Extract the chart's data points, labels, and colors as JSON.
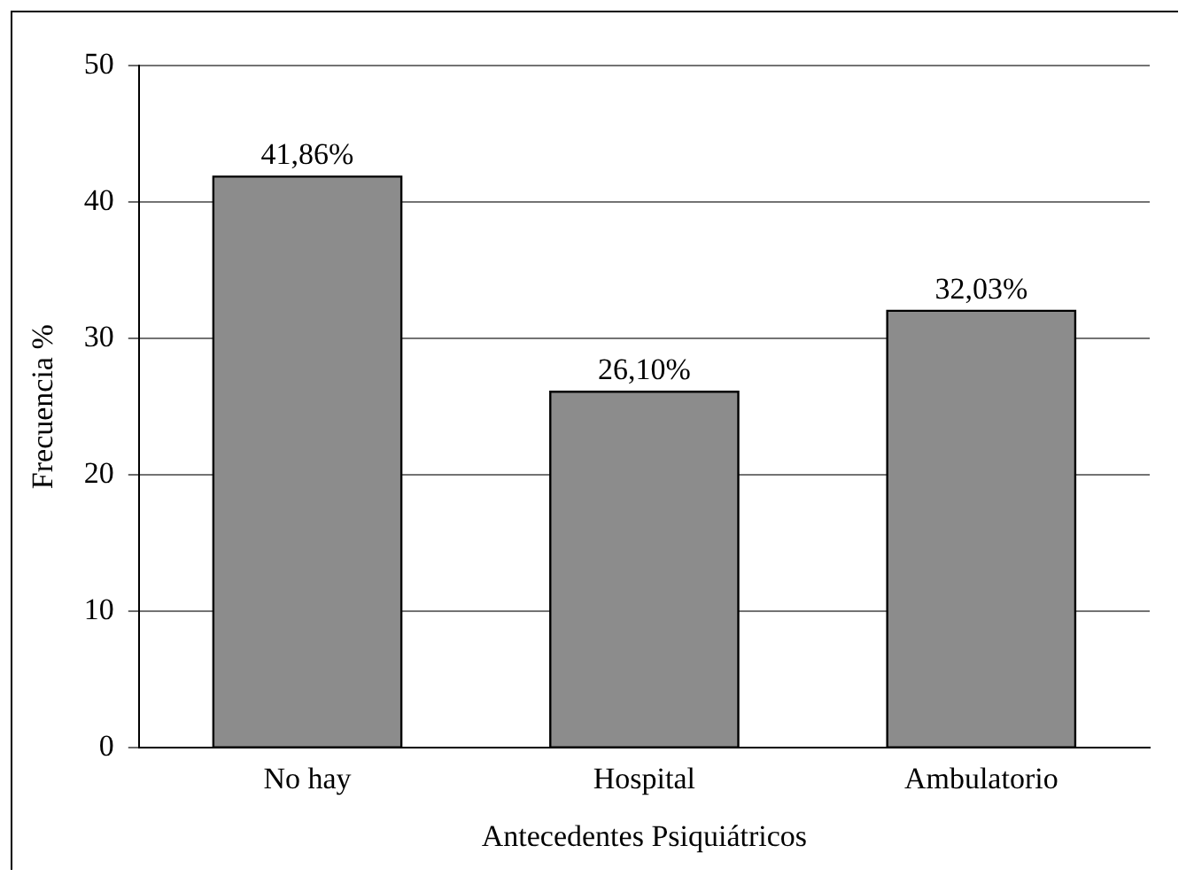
{
  "chart_data": {
    "type": "bar",
    "xlabel": "Antecedentes Psiquiátricos",
    "ylabel": "Frecuencia %",
    "categories": [
      "No hay",
      "Hospital",
      "Ambulatorio"
    ],
    "values": [
      41.86,
      26.1,
      32.03
    ],
    "value_labels": [
      "41,86%",
      "26,10%",
      "32,03%"
    ],
    "color": "#8c8c8c",
    "ylim": [
      0,
      50
    ],
    "yticks": [
      0,
      10,
      20,
      30,
      40,
      50
    ],
    "grid": "y",
    "legend": false
  }
}
